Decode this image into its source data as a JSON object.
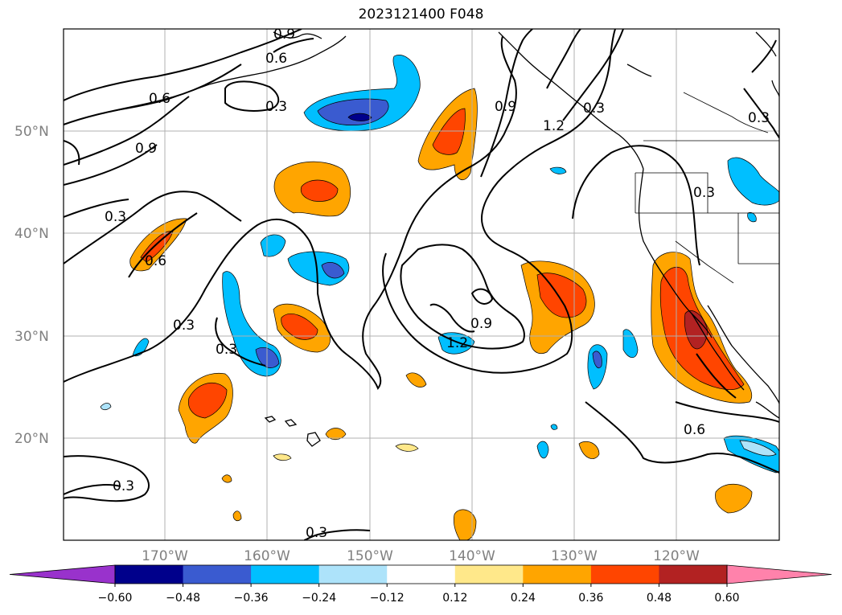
{
  "title": "2023121400 F048",
  "lat_labels": [
    "50°N",
    "40°N",
    "30°N",
    "20°N"
  ],
  "lon_labels": [
    "170°W",
    "160°W",
    "150°W",
    "140°W",
    "130°W",
    "120°W"
  ],
  "contour_labels": [
    "0.9",
    "0.6",
    "0.6",
    "0.3",
    "0.9",
    "0.3",
    "0.6",
    "0.3",
    "0.3",
    "0.3",
    "0.3",
    "0.3",
    "0.9",
    "1.2",
    "0.9",
    "1.2",
    "0.3",
    "0.6",
    "0.3"
  ],
  "colorbar": {
    "ticks": [
      "−0.60",
      "−0.48",
      "−0.36",
      "−0.24",
      "−0.12",
      "0.12",
      "0.24",
      "0.36",
      "0.48",
      "0.60"
    ],
    "colors": [
      "#9932CC",
      "#00008B",
      "#3A5BD0",
      "#00BFFF",
      "#ADE3FA",
      "#FFFFFF",
      "#FFE88A",
      "#FFA500",
      "#FF4500",
      "#B22222",
      "#FF82AB"
    ]
  },
  "colors": {
    "grid": "#b0b0b0",
    "contour": "#000000",
    "label": "#808080"
  }
}
